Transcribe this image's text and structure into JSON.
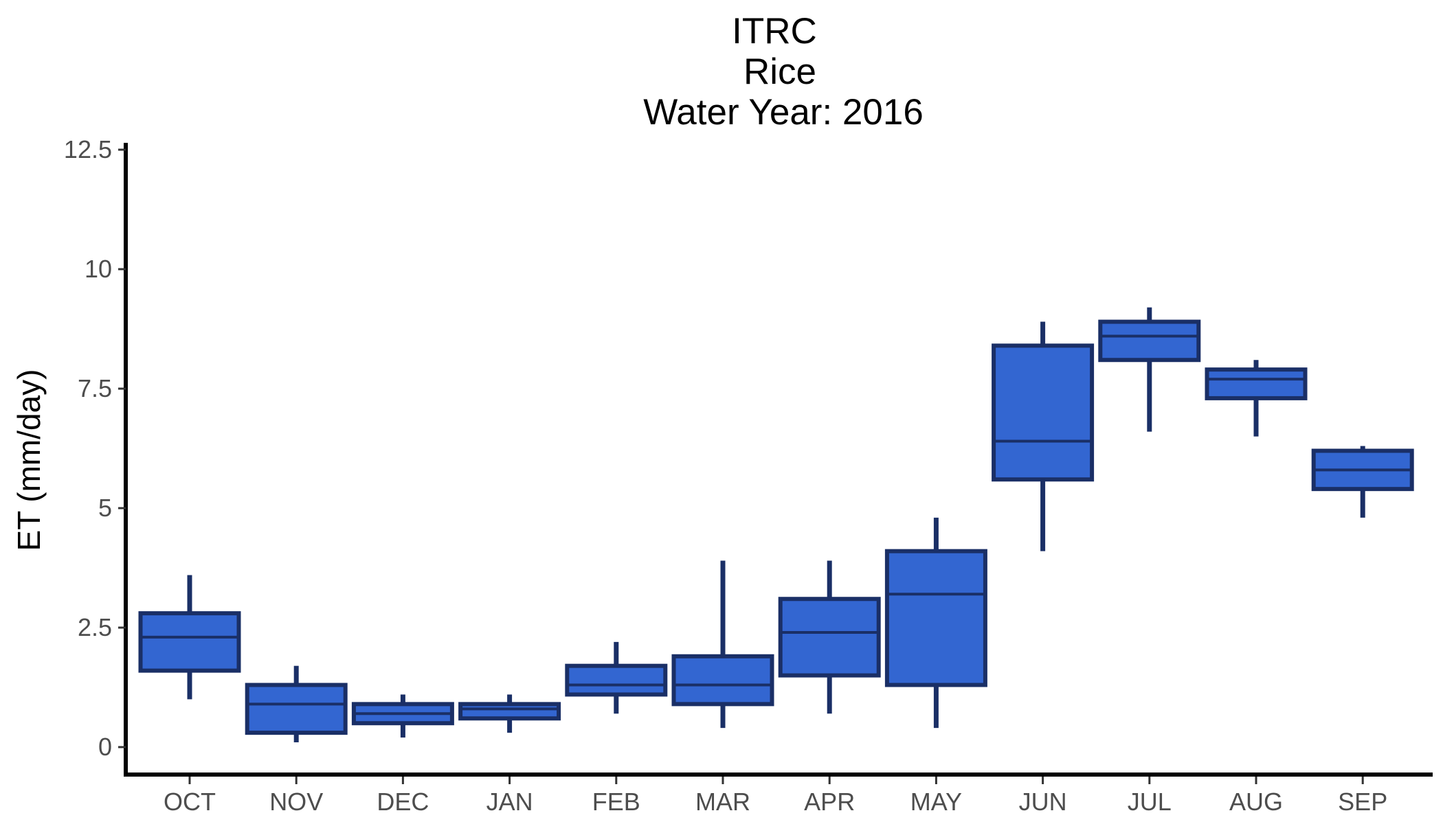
{
  "chart_data": {
    "type": "box",
    "title_lines": [
      "ITRC",
      "Rice",
      "Water Year: 2016"
    ],
    "xlabel": "",
    "ylabel": "ET (mm/day)",
    "ylim": [
      -0.6,
      12.5
    ],
    "yticks": [
      0,
      2.5,
      5,
      7.5,
      10,
      12.5
    ],
    "ytick_labels": [
      "0",
      "2.5",
      "5",
      "7.5",
      "10",
      "12.5"
    ],
    "grid": false,
    "fill_color": "#3366d1",
    "line_color": "#1a2f66",
    "categories": [
      "OCT",
      "NOV",
      "DEC",
      "JAN",
      "FEB",
      "MAR",
      "APR",
      "MAY",
      "JUN",
      "JUL",
      "AUG",
      "SEP"
    ],
    "boxes": [
      {
        "min": 1.0,
        "q1": 1.6,
        "median": 2.3,
        "q3": 2.8,
        "max": 3.6
      },
      {
        "min": 0.1,
        "q1": 0.3,
        "median": 0.9,
        "q3": 1.3,
        "max": 1.7
      },
      {
        "min": 0.2,
        "q1": 0.5,
        "median": 0.7,
        "q3": 0.9,
        "max": 1.1
      },
      {
        "min": 0.3,
        "q1": 0.6,
        "median": 0.8,
        "q3": 0.9,
        "max": 1.1
      },
      {
        "min": 0.7,
        "q1": 1.1,
        "median": 1.3,
        "q3": 1.7,
        "max": 2.2
      },
      {
        "min": 0.4,
        "q1": 0.9,
        "median": 1.3,
        "q3": 1.9,
        "max": 3.9
      },
      {
        "min": 0.7,
        "q1": 1.5,
        "median": 2.4,
        "q3": 3.1,
        "max": 3.9
      },
      {
        "min": 0.4,
        "q1": 1.3,
        "median": 3.2,
        "q3": 4.1,
        "max": 4.8
      },
      {
        "min": 4.1,
        "q1": 5.6,
        "median": 6.4,
        "q3": 8.4,
        "max": 8.9
      },
      {
        "min": 6.6,
        "q1": 8.1,
        "median": 8.6,
        "q3": 8.9,
        "max": 9.2
      },
      {
        "min": 6.5,
        "q1": 7.3,
        "median": 7.7,
        "q3": 7.9,
        "max": 8.1
      },
      {
        "min": 4.8,
        "q1": 5.4,
        "median": 5.8,
        "q3": 6.2,
        "max": 6.3
      }
    ]
  }
}
